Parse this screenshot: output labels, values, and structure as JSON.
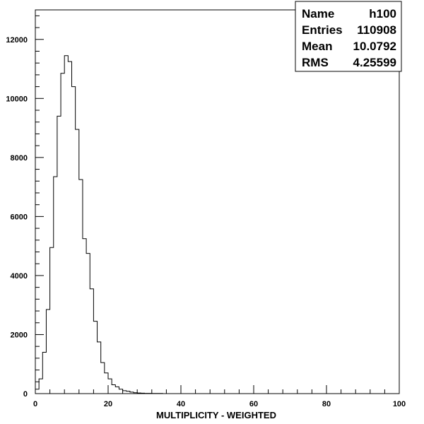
{
  "chart_data": {
    "type": "histogram",
    "title": "",
    "xlabel": "MULTIPLICITY - WEIGHTED",
    "ylabel": "",
    "xlim": [
      0,
      100
    ],
    "ylim": [
      0,
      13000
    ],
    "grid": false,
    "line_color": "#000000",
    "x_ticks": [
      {
        "value": 0,
        "label": "0"
      },
      {
        "value": 20,
        "label": "20"
      },
      {
        "value": 40,
        "label": "40"
      },
      {
        "value": 60,
        "label": "60"
      },
      {
        "value": 80,
        "label": "80"
      },
      {
        "value": 100,
        "label": "100"
      }
    ],
    "y_ticks": [
      {
        "value": 0,
        "label": "0"
      },
      {
        "value": 2000,
        "label": "2000"
      },
      {
        "value": 4000,
        "label": "4000"
      },
      {
        "value": 6000,
        "label": "6000"
      },
      {
        "value": 8000,
        "label": "8000"
      },
      {
        "value": 10000,
        "label": "10000"
      },
      {
        "value": 12000,
        "label": "12000"
      }
    ],
    "bin_width": 1,
    "bin_start": 0,
    "values": [
      150,
      500,
      1400,
      2850,
      4950,
      7350,
      9400,
      10850,
      11450,
      11250,
      10400,
      8950,
      7250,
      5250,
      4750,
      3550,
      2450,
      1750,
      1050,
      700,
      500,
      300,
      230,
      150,
      100,
      80,
      50,
      30,
      20,
      15,
      10,
      10,
      5,
      5,
      5,
      0
    ],
    "stats": {
      "position": "top-right",
      "rows": [
        {
          "label": "Name",
          "value": "h100"
        },
        {
          "label": "Entries",
          "value": "110908"
        },
        {
          "label": "Mean",
          "value": "10.0792"
        },
        {
          "label": "RMS",
          "value": "4.25599"
        }
      ]
    }
  }
}
